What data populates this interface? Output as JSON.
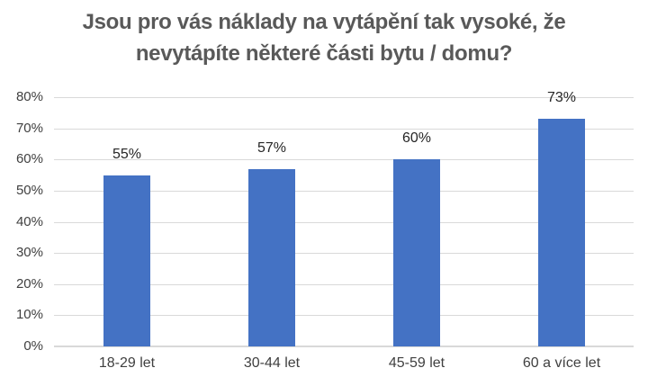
{
  "chart_data": {
    "type": "bar",
    "title": "Jsou pro vás náklady na vytápění tak vysoké, že nevytápíte některé části bytu / domu?",
    "title_lines": [
      "Jsou pro vás náklady na vytápění tak vysoké, že",
      "nevytápíte některé části bytu / domu?"
    ],
    "categories": [
      "18-29 let",
      "30-44 let",
      "45-59 let",
      "60 a více let"
    ],
    "values": [
      55,
      57,
      60,
      73
    ],
    "data_labels": [
      "55%",
      "57%",
      "60%",
      "73%"
    ],
    "xlabel": "",
    "ylabel": "",
    "ylim": [
      0,
      80
    ],
    "ytick_step": 10,
    "ytick_labels": [
      "0%",
      "10%",
      "20%",
      "30%",
      "40%",
      "50%",
      "60%",
      "70%",
      "80%"
    ],
    "grid": true,
    "legend": false,
    "colors": {
      "bar": "#4472C4",
      "gridline": "#D9D9D9",
      "axis_line": "#D9D9D9",
      "title": "#595959",
      "axis_labels": "#404040",
      "data_labels": "#262626",
      "background": "#FFFFFF"
    }
  }
}
